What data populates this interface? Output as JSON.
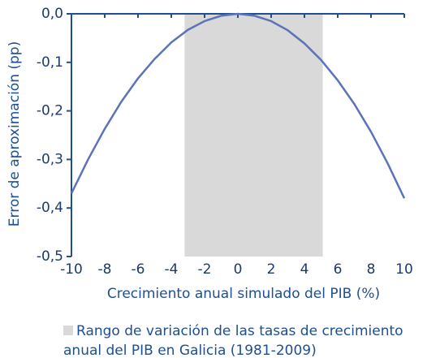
{
  "chart_data": {
    "type": "line",
    "x_label": "Crecimiento anual simulado del PIB (%)",
    "y_label": "Error de aproximación (pp)",
    "x": [
      -10,
      -9,
      -8,
      -7,
      -6,
      -5,
      -4,
      -3,
      -2,
      -1,
      0,
      1,
      2,
      3,
      4,
      5,
      6,
      7,
      8,
      9,
      10
    ],
    "series": [
      {
        "name": null,
        "color": "#5b73b9",
        "values": [
          -0.37,
          -0.3,
          -0.237,
          -0.181,
          -0.133,
          -0.093,
          -0.059,
          -0.033,
          -0.015,
          -0.004,
          0,
          -0.004,
          -0.015,
          -0.034,
          -0.061,
          -0.095,
          -0.137,
          -0.186,
          -0.243,
          -0.308,
          -0.38
        ]
      }
    ],
    "shaded_range": {
      "name": "Rango de variación de las tasas de crecimiento anual del PIB en Galicia (1981-2009)",
      "color": "#d9d9d9",
      "x": [
        -3.2,
        5.1
      ]
    },
    "xlim": [
      -10,
      10
    ],
    "xticks": [
      -10,
      -8,
      -6,
      -4,
      -2,
      0,
      2,
      4,
      6,
      8,
      10
    ],
    "ylim": [
      -0.5,
      0
    ],
    "yticks": [
      {
        "value": 0,
        "label": "0,0"
      },
      {
        "value": -0.1,
        "label": "-0,1"
      },
      {
        "value": -0.2,
        "label": "-0,2"
      },
      {
        "value": -0.3,
        "label": "-0,3"
      },
      {
        "value": -0.4,
        "label": "-0,4"
      },
      {
        "value": -0.5,
        "label": "-0,5"
      }
    ],
    "axis_color": "#1d4f91"
  }
}
